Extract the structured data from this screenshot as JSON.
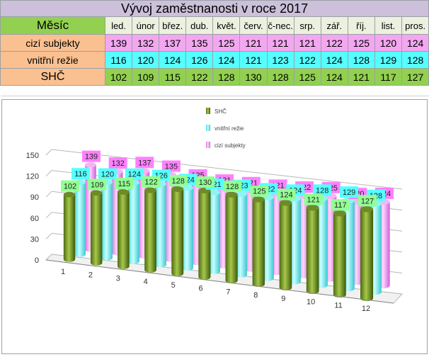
{
  "table": {
    "title": "Vývoj zaměstnanosti v roce 2017",
    "header_label": "Měsíc",
    "months": [
      "led.",
      "únor",
      "břez.",
      "dub.",
      "květ.",
      "červ.",
      "č-nec.",
      "srp.",
      "zář.",
      "říj.",
      "list.",
      "pros."
    ],
    "rows": [
      {
        "label": "cizí subjekty",
        "values": [
          139,
          132,
          137,
          135,
          125,
          121,
          121,
          121,
          122,
          125,
          120,
          124
        ]
      },
      {
        "label": "vnitřní režie",
        "values": [
          116,
          120,
          124,
          126,
          124,
          121,
          123,
          122,
          124,
          128,
          129,
          128
        ]
      },
      {
        "label": "SHČ",
        "values": [
          102,
          109,
          115,
          122,
          128,
          130,
          128,
          125,
          124,
          121,
          117,
          127
        ]
      }
    ]
  },
  "chart_data": {
    "type": "bar",
    "categories": [
      "1",
      "2",
      "3",
      "4",
      "5",
      "6",
      "7",
      "8",
      "9",
      "10",
      "11",
      "12"
    ],
    "series": [
      {
        "name": "SHČ",
        "color": "#7a9a2a",
        "label_color": "#92ff92",
        "values": [
          102,
          109,
          115,
          122,
          128,
          130,
          128,
          125,
          124,
          121,
          117,
          127
        ]
      },
      {
        "name": "vnitřní režie",
        "color": "#66f0f0",
        "label_color": "#55ffff",
        "values": [
          116,
          120,
          124,
          126,
          124,
          121,
          123,
          122,
          124,
          128,
          129,
          128
        ]
      },
      {
        "name": "cizí subjekty",
        "color": "#f3a0f0",
        "label_color": "#ff80ff",
        "values": [
          139,
          132,
          137,
          135,
          125,
          121,
          121,
          121,
          122,
          125,
          120,
          124
        ]
      }
    ],
    "y_ticks": [
      "0",
      "30",
      "60",
      "90",
      "120",
      "150"
    ],
    "ylim": [
      0,
      150
    ],
    "legend_position": "top-center",
    "grid": true
  }
}
